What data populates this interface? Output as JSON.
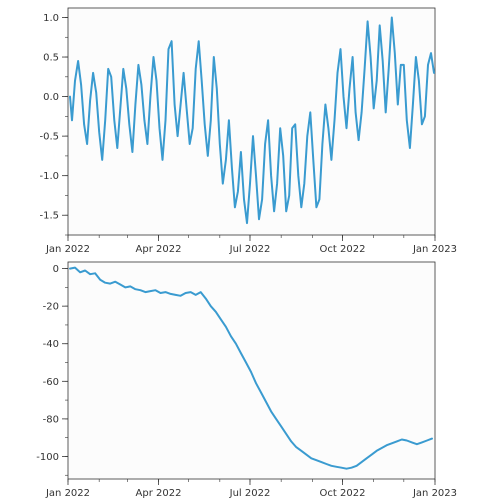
{
  "colors": {
    "line": "#3a9bd0",
    "axis": "#333333",
    "background": "#fcfcfc"
  },
  "chart_data": [
    {
      "type": "line",
      "title": "",
      "xlabel": "",
      "ylabel": "",
      "x_range": [
        "2022-01-01",
        "2023-01-01"
      ],
      "ylim": [
        -1.75,
        1.12
      ],
      "x_ticks": [
        {
          "date": "2022-01-01",
          "label": "Jan 2022"
        },
        {
          "date": "2022-04-01",
          "label": "Apr 2022"
        },
        {
          "date": "2022-07-01",
          "label": "Jul 2022"
        },
        {
          "date": "2022-10-01",
          "label": "Oct 2022"
        },
        {
          "date": "2023-01-01",
          "label": "Jan 2023"
        }
      ],
      "y_ticks": [
        {
          "value": 1.0,
          "label": "1.0"
        },
        {
          "value": 0.5,
          "label": "0.5"
        },
        {
          "value": 0.0,
          "label": "0.0"
        },
        {
          "value": -0.5,
          "label": "-0.5"
        },
        {
          "value": -1.0,
          "label": "-1.0"
        },
        {
          "value": -1.5,
          "label": "-1.5"
        }
      ],
      "grid": false,
      "series": [
        {
          "x": [
            "2022-01-03",
            "2022-01-05",
            "2022-01-08",
            "2022-01-11",
            "2022-01-14",
            "2022-01-17",
            "2022-01-20",
            "2022-01-23",
            "2022-01-26",
            "2022-01-29",
            "2022-02-01",
            "2022-02-04",
            "2022-02-07",
            "2022-02-10",
            "2022-02-13",
            "2022-02-16",
            "2022-02-19",
            "2022-02-22",
            "2022-02-25",
            "2022-02-28",
            "2022-03-03",
            "2022-03-06",
            "2022-03-09",
            "2022-03-12",
            "2022-03-15",
            "2022-03-18",
            "2022-03-21",
            "2022-03-24",
            "2022-03-27",
            "2022-03-30",
            "2022-04-02",
            "2022-04-05",
            "2022-04-08",
            "2022-04-11",
            "2022-04-14",
            "2022-04-17",
            "2022-04-20",
            "2022-04-23",
            "2022-04-26",
            "2022-04-29",
            "2022-05-02",
            "2022-05-05",
            "2022-05-08",
            "2022-05-11",
            "2022-05-14",
            "2022-05-17",
            "2022-05-20",
            "2022-05-23",
            "2022-05-26",
            "2022-05-29",
            "2022-06-01",
            "2022-06-04",
            "2022-06-07",
            "2022-06-10",
            "2022-06-13",
            "2022-06-16",
            "2022-06-19",
            "2022-06-22",
            "2022-06-25",
            "2022-06-28",
            "2022-07-01",
            "2022-07-04",
            "2022-07-07",
            "2022-07-10",
            "2022-07-13",
            "2022-07-16",
            "2022-07-19",
            "2022-07-22",
            "2022-07-25",
            "2022-07-28",
            "2022-07-31",
            "2022-08-03",
            "2022-08-06",
            "2022-08-09",
            "2022-08-12",
            "2022-08-15",
            "2022-08-18",
            "2022-08-21",
            "2022-08-24",
            "2022-08-27",
            "2022-08-30",
            "2022-09-02",
            "2022-09-05",
            "2022-09-08",
            "2022-09-11",
            "2022-09-14",
            "2022-09-17",
            "2022-09-20",
            "2022-09-23",
            "2022-09-26",
            "2022-09-29",
            "2022-10-02",
            "2022-10-05",
            "2022-10-08",
            "2022-10-11",
            "2022-10-14",
            "2022-10-17",
            "2022-10-20",
            "2022-10-23",
            "2022-10-26",
            "2022-10-29",
            "2022-11-01",
            "2022-11-04",
            "2022-11-07",
            "2022-11-10",
            "2022-11-13",
            "2022-11-16",
            "2022-11-19",
            "2022-11-22",
            "2022-11-25",
            "2022-11-28",
            "2022-12-01",
            "2022-12-04",
            "2022-12-07",
            "2022-12-10",
            "2022-12-13",
            "2022-12-16",
            "2022-12-19",
            "2022-12-22",
            "2022-12-25",
            "2022-12-28",
            "2022-12-31"
          ],
          "y": [
            0.0,
            -0.3,
            0.2,
            0.45,
            0.15,
            -0.35,
            -0.6,
            -0.05,
            0.3,
            0.05,
            -0.45,
            -0.8,
            -0.3,
            0.35,
            0.25,
            -0.3,
            -0.65,
            -0.15,
            0.35,
            0.1,
            -0.35,
            -0.7,
            -0.1,
            0.4,
            0.15,
            -0.3,
            -0.6,
            0.0,
            0.5,
            0.2,
            -0.4,
            -0.8,
            -0.3,
            0.6,
            0.7,
            -0.1,
            -0.5,
            -0.1,
            0.3,
            -0.15,
            -0.6,
            -0.4,
            0.35,
            0.7,
            0.2,
            -0.35,
            -0.75,
            -0.3,
            0.5,
            0.1,
            -0.6,
            -1.1,
            -0.8,
            -0.3,
            -0.9,
            -1.4,
            -1.2,
            -0.7,
            -1.3,
            -1.6,
            -1.1,
            -0.5,
            -1.0,
            -1.55,
            -1.3,
            -0.6,
            -0.3,
            -1.0,
            -1.45,
            -1.1,
            -0.4,
            -0.75,
            -1.45,
            -1.25,
            -0.4,
            -0.35,
            -1.0,
            -1.4,
            -1.1,
            -0.5,
            -0.2,
            -0.8,
            -1.4,
            -1.3,
            -0.6,
            -0.1,
            -0.4,
            -0.8,
            -0.3,
            0.3,
            0.6,
            0.0,
            -0.4,
            0.1,
            0.5,
            -0.2,
            -0.55,
            -0.2,
            0.35,
            0.95,
            0.5,
            -0.15,
            0.2,
            0.9,
            0.45,
            -0.2,
            0.35,
            1.0,
            0.55,
            -0.1,
            0.4,
            0.4,
            -0.3,
            -0.65,
            -0.1,
            0.5,
            0.2,
            -0.35,
            -0.25,
            0.4,
            0.55,
            0.3
          ]
        }
      ]
    },
    {
      "type": "line",
      "title": "",
      "xlabel": "",
      "ylabel": "",
      "x_range": [
        "2022-01-01",
        "2023-01-01"
      ],
      "ylim": [
        -112,
        3.5
      ],
      "x_ticks": [
        {
          "date": "2022-01-01",
          "label": "Jan 2022"
        },
        {
          "date": "2022-04-01",
          "label": "Apr 2022"
        },
        {
          "date": "2022-07-01",
          "label": "Jul 2022"
        },
        {
          "date": "2022-10-01",
          "label": "Oct 2022"
        },
        {
          "date": "2023-01-01",
          "label": "Jan 2023"
        }
      ],
      "y_ticks": [
        {
          "value": 0,
          "label": "0"
        },
        {
          "value": -20,
          "label": "-20"
        },
        {
          "value": -40,
          "label": "-40"
        },
        {
          "value": -60,
          "label": "-60"
        },
        {
          "value": -80,
          "label": "-80"
        },
        {
          "value": -100,
          "label": "-100"
        }
      ],
      "grid": false,
      "series": [
        {
          "x": [
            "2022-01-03",
            "2022-01-08",
            "2022-01-13",
            "2022-01-18",
            "2022-01-23",
            "2022-01-28",
            "2022-02-02",
            "2022-02-07",
            "2022-02-12",
            "2022-02-17",
            "2022-02-22",
            "2022-02-27",
            "2022-03-04",
            "2022-03-09",
            "2022-03-14",
            "2022-03-19",
            "2022-03-24",
            "2022-03-29",
            "2022-04-03",
            "2022-04-08",
            "2022-04-13",
            "2022-04-18",
            "2022-04-23",
            "2022-04-28",
            "2022-05-03",
            "2022-05-08",
            "2022-05-13",
            "2022-05-18",
            "2022-05-23",
            "2022-05-28",
            "2022-06-02",
            "2022-06-07",
            "2022-06-12",
            "2022-06-17",
            "2022-06-22",
            "2022-06-27",
            "2022-07-02",
            "2022-07-07",
            "2022-07-12",
            "2022-07-17",
            "2022-07-22",
            "2022-07-27",
            "2022-08-01",
            "2022-08-06",
            "2022-08-11",
            "2022-08-16",
            "2022-08-21",
            "2022-08-26",
            "2022-08-31",
            "2022-09-05",
            "2022-09-10",
            "2022-09-15",
            "2022-09-20",
            "2022-09-25",
            "2022-09-30",
            "2022-10-05",
            "2022-10-10",
            "2022-10-15",
            "2022-10-20",
            "2022-10-25",
            "2022-10-30",
            "2022-11-04",
            "2022-11-09",
            "2022-11-14",
            "2022-11-19",
            "2022-11-24",
            "2022-11-29",
            "2022-12-04",
            "2022-12-09",
            "2022-12-14",
            "2022-12-19",
            "2022-12-24",
            "2022-12-29"
          ],
          "y": [
            0.0,
            0.5,
            -2.0,
            -1.0,
            -3.0,
            -2.5,
            -6.0,
            -7.5,
            -8.0,
            -7.0,
            -8.5,
            -10.0,
            -9.5,
            -11.0,
            -11.5,
            -12.5,
            -12.0,
            -11.5,
            -13.0,
            -12.5,
            -13.5,
            -14.0,
            -14.5,
            -13.0,
            -12.5,
            -14.0,
            -12.5,
            -16.0,
            -20.0,
            -23.0,
            -27.0,
            -31.0,
            -36.0,
            -40.0,
            -45.0,
            -50.0,
            -55.0,
            -61.0,
            -66.0,
            -71.0,
            -76.0,
            -80.0,
            -84.0,
            -88.0,
            -92.0,
            -95.0,
            -97.0,
            -99.0,
            -101.0,
            -102.0,
            -103.0,
            -104.0,
            -105.0,
            -105.5,
            -106.0,
            -106.5,
            -106.0,
            -105.0,
            -103.0,
            -101.0,
            -99.0,
            -97.0,
            -95.5,
            -94.0,
            -93.0,
            -92.0,
            -91.0,
            -91.5,
            -92.5,
            -93.5,
            -92.5,
            -91.5,
            -90.5
          ]
        }
      ]
    }
  ]
}
